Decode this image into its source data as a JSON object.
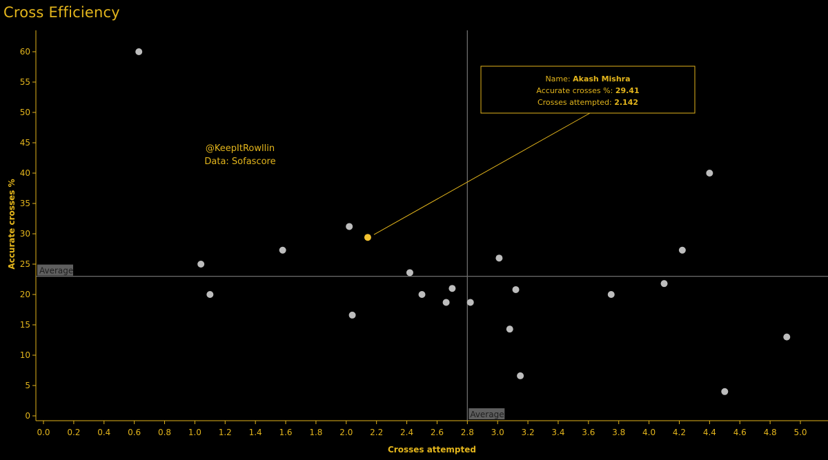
{
  "title": "Cross Efficiency",
  "colors": {
    "background": "#000000",
    "accent": "#E3B51C",
    "highlight_point": "#F2C230",
    "point": "#BDBDBD",
    "reference_line": "#6E6E6E",
    "axis": "#E3B51C",
    "label_box": "#5F5F5F"
  },
  "credits": {
    "line1": "@KeepItRowllin",
    "line2": "Data: Sofascore"
  },
  "tooltip": {
    "name_label": "Name:",
    "name_value": "Akash Mishra",
    "accuracy_label": "Accurate crosses %:",
    "accuracy_value": "29.41",
    "attempts_label": "Crosses attempted:",
    "attempts_value": "2.142"
  },
  "chart_data": {
    "type": "scatter",
    "title": "Cross Efficiency",
    "xlabel": "Crosses attempted",
    "ylabel": "Accurate crosses %",
    "xlim": [
      -0.05,
      5.2
    ],
    "ylim": [
      -0.8,
      63
    ],
    "xticks": [
      "0.0",
      "0.2",
      "0.4",
      "0.6",
      "0.8",
      "1.0",
      "1.2",
      "1.4",
      "1.6",
      "1.8",
      "2.0",
      "2.2",
      "2.4",
      "2.6",
      "2.8",
      "3.0",
      "3.2",
      "3.4",
      "3.6",
      "3.8",
      "4.0",
      "4.2",
      "4.4",
      "4.6",
      "4.8",
      "5.0"
    ],
    "yticks": [
      "0",
      "5",
      "10",
      "15",
      "20",
      "25",
      "30",
      "35",
      "40",
      "45",
      "50",
      "55",
      "60"
    ],
    "grid": false,
    "reference_lines": {
      "x_average": 2.8,
      "y_average": 23,
      "label": "Average"
    },
    "highlight": {
      "x": 2.142,
      "y": 29.41,
      "name": "Akash Mishra"
    },
    "points": [
      {
        "x": 0.63,
        "y": 60
      },
      {
        "x": 1.04,
        "y": 25
      },
      {
        "x": 1.1,
        "y": 20
      },
      {
        "x": 1.58,
        "y": 27.3
      },
      {
        "x": 2.02,
        "y": 31.2
      },
      {
        "x": 2.04,
        "y": 16.6
      },
      {
        "x": 2.142,
        "y": 29.41
      },
      {
        "x": 2.42,
        "y": 23.6
      },
      {
        "x": 2.5,
        "y": 20
      },
      {
        "x": 2.66,
        "y": 18.7
      },
      {
        "x": 2.7,
        "y": 21
      },
      {
        "x": 2.82,
        "y": 18.7
      },
      {
        "x": 3.01,
        "y": 26
      },
      {
        "x": 3.08,
        "y": 14.3
      },
      {
        "x": 3.12,
        "y": 20.8
      },
      {
        "x": 3.15,
        "y": 6.6
      },
      {
        "x": 3.75,
        "y": 20
      },
      {
        "x": 4.1,
        "y": 21.8
      },
      {
        "x": 4.22,
        "y": 27.3
      },
      {
        "x": 4.4,
        "y": 40
      },
      {
        "x": 4.5,
        "y": 4
      },
      {
        "x": 4.91,
        "y": 13
      }
    ]
  }
}
